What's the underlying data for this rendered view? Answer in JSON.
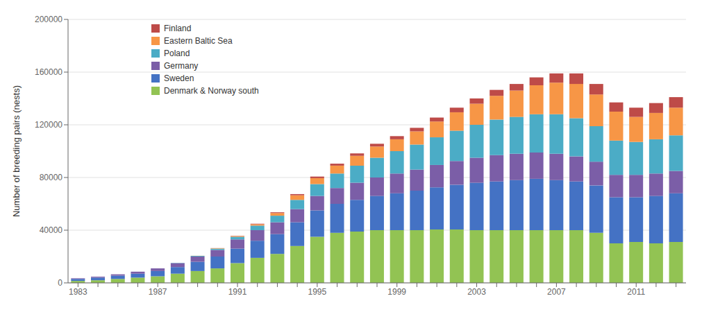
{
  "chart_data": {
    "type": "bar",
    "stacked": true,
    "ylabel": "Number of breeding pairs (nests)",
    "categories": [
      "1983",
      null,
      null,
      null,
      "1987",
      null,
      null,
      null,
      "1991",
      null,
      null,
      null,
      "1995",
      null,
      null,
      null,
      "1999",
      null,
      null,
      null,
      "2003",
      null,
      null,
      null,
      "2007",
      null,
      null,
      null,
      "2011",
      null,
      null
    ],
    "series": [
      {
        "name": "Denmark & Norway south",
        "color": "#92C353",
        "values": [
          1500,
          2000,
          3000,
          4000,
          5000,
          7000,
          9000,
          11000,
          15000,
          19000,
          22000,
          28000,
          35000,
          38000,
          39000,
          40000,
          40000,
          40000,
          40500,
          40500,
          40000,
          40000,
          40000,
          40000,
          40000,
          40000,
          38000,
          30000,
          31000,
          30000,
          31000
        ]
      },
      {
        "name": "Sweden",
        "color": "#4472C4",
        "values": [
          1500,
          2000,
          2500,
          3000,
          4000,
          5000,
          7000,
          9000,
          11000,
          13000,
          15000,
          18000,
          20000,
          22000,
          24000,
          26000,
          28000,
          30000,
          32000,
          34000,
          36000,
          37000,
          38000,
          39000,
          38000,
          37000,
          36000,
          35000,
          34000,
          36000,
          37000
        ]
      },
      {
        "name": "Germany",
        "color": "#7B5EA7",
        "values": [
          500,
          700,
          1000,
          1500,
          2000,
          3000,
          4000,
          5000,
          7000,
          8000,
          9000,
          10000,
          11000,
          12000,
          13000,
          14000,
          15000,
          16000,
          17000,
          18000,
          19000,
          20000,
          20000,
          20000,
          20000,
          19000,
          18000,
          17000,
          17000,
          17000,
          17000
        ]
      },
      {
        "name": "Poland",
        "color": "#4BACC6",
        "values": [
          0,
          0,
          0,
          0,
          0,
          200,
          500,
          1000,
          2000,
          3500,
          5000,
          7000,
          9000,
          11000,
          13000,
          15000,
          17000,
          19000,
          21000,
          23000,
          25000,
          27000,
          28000,
          29000,
          30000,
          29000,
          27000,
          26000,
          25000,
          26000,
          27000
        ]
      },
      {
        "name": "Eastern Baltic Sea",
        "color": "#F79646",
        "values": [
          0,
          0,
          0,
          0,
          0,
          0,
          100,
          300,
          600,
          1000,
          2000,
          3500,
          4500,
          6000,
          7500,
          8500,
          9000,
          10000,
          12000,
          14000,
          16000,
          18000,
          20000,
          22000,
          24000,
          26000,
          24000,
          22000,
          19000,
          20000,
          21000
        ]
      },
      {
        "name": "Finland",
        "color": "#BE4B48",
        "values": [
          0,
          0,
          0,
          0,
          0,
          0,
          0,
          100,
          200,
          400,
          600,
          900,
          1200,
          1500,
          1800,
          2100,
          2400,
          2700,
          3000,
          3500,
          4000,
          4500,
          5000,
          6000,
          7000,
          8000,
          8000,
          7000,
          7000,
          7500,
          8000
        ]
      }
    ],
    "ylim": [
      0,
      200000
    ],
    "yticks": [
      0,
      40000,
      80000,
      120000,
      160000,
      200000
    ],
    "grid": true,
    "legend": "upper left"
  }
}
